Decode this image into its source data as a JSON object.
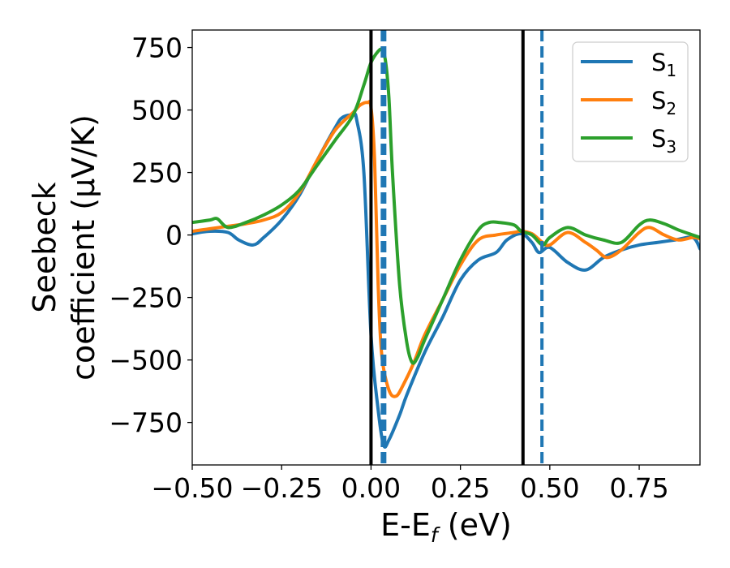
{
  "chart_data": {
    "type": "line",
    "xlabel": "E-E",
    "xlabel_sub": "f",
    "xlabel_unit": " (eV)",
    "ylabel_line1": "Seebeck",
    "ylabel_line2": "coefficient  (μV/K)",
    "xlim": [
      -0.5,
      0.92
    ],
    "ylim": [
      -920,
      820
    ],
    "xticks": [
      -0.5,
      -0.25,
      0.0,
      0.25,
      0.5,
      0.75
    ],
    "xtick_labels": [
      "−0.50",
      "−0.25",
      "0.00",
      "0.25",
      "0.50",
      "0.75"
    ],
    "yticks": [
      750,
      500,
      250,
      0,
      -250,
      -500,
      -750
    ],
    "ytick_labels": [
      "750",
      "500",
      "250",
      "0",
      "−250",
      "−500",
      "−750"
    ],
    "grid": false,
    "legend_position": "top-right",
    "series": [
      {
        "name": "S",
        "sub": "1",
        "color": "#1f77b4",
        "x": [
          -0.5,
          -0.45,
          -0.4,
          -0.37,
          -0.33,
          -0.3,
          -0.25,
          -0.2,
          -0.15,
          -0.1,
          -0.08,
          -0.05,
          -0.04,
          -0.02,
          0.0,
          0.02,
          0.035,
          0.05,
          0.08,
          0.1,
          0.15,
          0.2,
          0.25,
          0.3,
          0.35,
          0.38,
          0.42,
          0.45,
          0.47,
          0.5,
          0.55,
          0.6,
          0.65,
          0.7,
          0.75,
          0.8,
          0.85,
          0.9,
          0.92
        ],
        "y": [
          5,
          15,
          10,
          -20,
          -40,
          -10,
          60,
          160,
          300,
          430,
          470,
          480,
          460,
          250,
          -400,
          -700,
          -840,
          -820,
          -720,
          -640,
          -470,
          -330,
          -180,
          -100,
          -70,
          -20,
          5,
          -30,
          -70,
          -50,
          -110,
          -140,
          -90,
          -60,
          -40,
          -30,
          -20,
          -10,
          -55
        ]
      },
      {
        "name": "S",
        "sub": "2",
        "color": "#ff7f0e",
        "x": [
          -0.5,
          -0.45,
          -0.4,
          -0.35,
          -0.3,
          -0.25,
          -0.2,
          -0.15,
          -0.1,
          -0.05,
          -0.03,
          -0.01,
          0.0,
          0.01,
          0.02,
          0.03,
          0.05,
          0.07,
          0.09,
          0.12,
          0.15,
          0.2,
          0.25,
          0.3,
          0.35,
          0.4,
          0.42,
          0.45,
          0.48,
          0.5,
          0.55,
          0.6,
          0.63,
          0.66,
          0.7,
          0.75,
          0.78,
          0.82,
          0.86,
          0.9,
          0.92
        ],
        "y": [
          15,
          25,
          35,
          45,
          60,
          90,
          170,
          300,
          420,
          490,
          520,
          530,
          510,
          300,
          -200,
          -480,
          -620,
          -645,
          -600,
          -510,
          -400,
          -260,
          -120,
          -20,
          0,
          10,
          15,
          5,
          -30,
          -40,
          10,
          -30,
          -60,
          -90,
          -60,
          10,
          30,
          0,
          -20,
          -10,
          -15
        ]
      },
      {
        "name": "S",
        "sub": "3",
        "color": "#2ca02c",
        "x": [
          -0.5,
          -0.45,
          -0.43,
          -0.4,
          -0.35,
          -0.3,
          -0.25,
          -0.2,
          -0.15,
          -0.1,
          -0.05,
          -0.02,
          0.0,
          0.02,
          0.03,
          0.04,
          0.05,
          0.06,
          0.08,
          0.1,
          0.115,
          0.13,
          0.15,
          0.2,
          0.25,
          0.3,
          0.33,
          0.36,
          0.4,
          0.42,
          0.45,
          0.48,
          0.5,
          0.55,
          0.6,
          0.65,
          0.7,
          0.75,
          0.78,
          0.82,
          0.86,
          0.9,
          0.92
        ],
        "y": [
          50,
          60,
          65,
          30,
          50,
          80,
          120,
          180,
          280,
          380,
          480,
          600,
          690,
          735,
          740,
          700,
          550,
          250,
          -200,
          -430,
          -510,
          -490,
          -420,
          -260,
          -100,
          20,
          50,
          50,
          40,
          15,
          0,
          -40,
          -10,
          30,
          0,
          -20,
          -30,
          40,
          60,
          45,
          20,
          0,
          -10
        ]
      }
    ],
    "vlines": [
      {
        "x": 0.0,
        "color": "#000000",
        "style": "solid",
        "width": 4
      },
      {
        "x": 0.035,
        "color": "#1f77b4",
        "style": "dashed",
        "width": 7
      },
      {
        "x": 0.425,
        "color": "#000000",
        "style": "solid",
        "width": 4
      },
      {
        "x": 0.478,
        "color": "#1f77b4",
        "style": "dashed",
        "width": 4
      }
    ]
  }
}
